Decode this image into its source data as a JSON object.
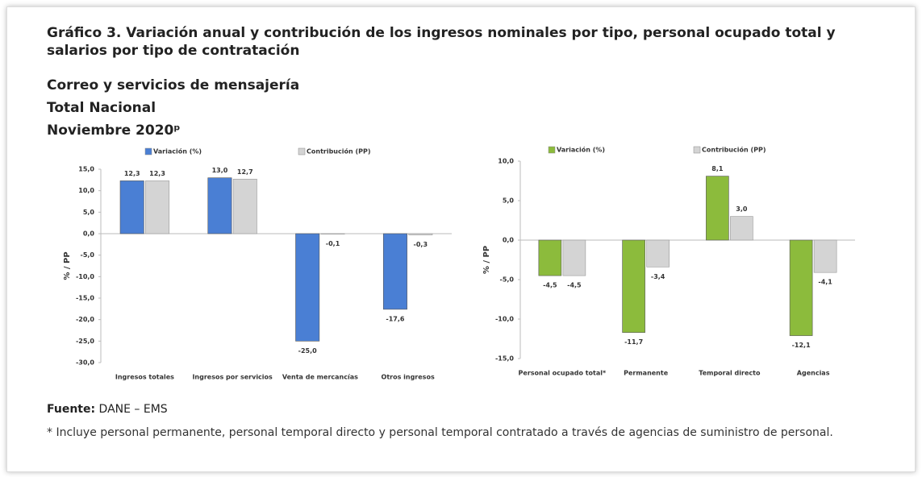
{
  "header": {
    "title": "Gráfico 3. Variación anual y contribución de los ingresos nominales por tipo, personal ocupado total y salarios por tipo de contratación",
    "subtitle": [
      "Correo y servicios de mensajería",
      "Total Nacional",
      "Noviembre 2020ᵖ"
    ]
  },
  "chart_data": [
    {
      "type": "bar",
      "ylabel": "% / PP",
      "categories": [
        "Ingresos totales",
        "Ingresos por servicios",
        "Venta de mercancías",
        "Otros ingresos"
      ],
      "series": [
        {
          "name": "Variación (%)",
          "color": "#4a7fd4",
          "values": [
            12.3,
            13.0,
            -25.0,
            -17.6
          ],
          "value_labels": [
            "12,3",
            "13,0",
            "-25,0",
            "-17,6"
          ]
        },
        {
          "name": "Contribución (PP)",
          "color": "#d4d4d4",
          "values": [
            12.3,
            12.7,
            -0.1,
            -0.3
          ],
          "value_labels": [
            "12,3",
            "12,7",
            "-0,1",
            "-0,3"
          ]
        }
      ],
      "ylim": [
        -30,
        15
      ],
      "yticks": [
        {
          "value": 15,
          "label": "15,0"
        },
        {
          "value": 10,
          "label": "10,0"
        },
        {
          "value": 5,
          "label": "5,0"
        },
        {
          "value": 0,
          "label": "0,0"
        },
        {
          "value": -5,
          "label": "-5,0"
        },
        {
          "value": -10,
          "label": "-10,0"
        },
        {
          "value": -15,
          "label": "-15,0"
        },
        {
          "value": -20,
          "label": "-20,0"
        },
        {
          "value": -25,
          "label": "-25,0"
        },
        {
          "value": -30,
          "label": "-30,0"
        }
      ]
    },
    {
      "type": "bar",
      "ylabel": "% / PP",
      "categories": [
        "Personal ocupado total*",
        "Permanente",
        "Temporal directo",
        "Agencias"
      ],
      "series": [
        {
          "name": "Variación (%)",
          "color": "#8cbb3c",
          "values": [
            -4.5,
            -11.7,
            8.1,
            -12.1
          ],
          "value_labels": [
            "-4,5",
            "-11,7",
            "8,1",
            "-12,1"
          ]
        },
        {
          "name": "Contribución (PP)",
          "color": "#d4d4d4",
          "values": [
            -4.5,
            -3.4,
            3.0,
            -4.1
          ],
          "value_labels": [
            "-4,5",
            "-3,4",
            "3,0",
            "-4,1"
          ]
        }
      ],
      "ylim": [
        -15,
        10
      ],
      "yticks": [
        {
          "value": 10,
          "label": "10,0"
        },
        {
          "value": 5,
          "label": "5,0"
        },
        {
          "value": 0,
          "label": "0,0"
        },
        {
          "value": -5,
          "label": "-5,0"
        },
        {
          "value": -10,
          "label": "-10,0"
        },
        {
          "value": -15,
          "label": "-15,0"
        }
      ]
    }
  ],
  "footer": {
    "source_label": "Fuente:",
    "source": "DANE – EMS",
    "note": "* Incluye personal permanente, personal temporal directo y personal temporal contratado a través de agencias de suministro de personal."
  }
}
